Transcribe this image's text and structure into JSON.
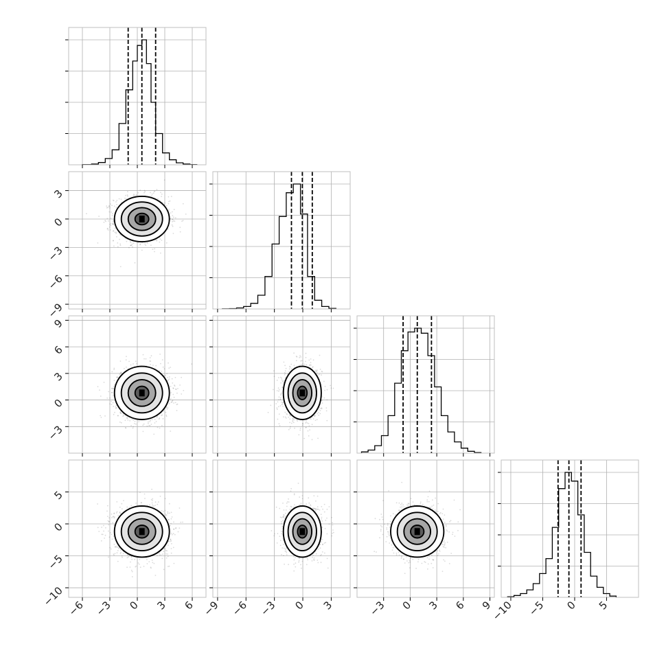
{
  "chart_data": {
    "type": "corner",
    "parameters": [
      {
        "range": [
          -7.5,
          7.5
        ],
        "ticks": [
          -6,
          -3,
          0,
          3,
          6
        ],
        "tick_labels": [
          "−6",
          "−3",
          "0",
          "3",
          "6"
        ]
      },
      {
        "range": [
          -9.5,
          5.0
        ],
        "ticks": [
          -9,
          -6,
          -3,
          0,
          3
        ],
        "tick_labels": [
          "−9",
          "−6",
          "−3",
          "0",
          "3"
        ]
      },
      {
        "range": [
          -6.0,
          9.5
        ],
        "ticks": [
          -3,
          0,
          3,
          6,
          9
        ],
        "tick_labels": [
          "−3",
          "0",
          "3",
          "6",
          "9"
        ]
      },
      {
        "range": [
          -11.5,
          10.0
        ],
        "ticks": [
          -10,
          -5,
          0,
          5
        ],
        "tick_labels": [
          "−10",
          "−5",
          "0",
          "5"
        ]
      }
    ],
    "marginals": [
      {
        "bins": [
          -6.0,
          -5.0,
          -4.25,
          -3.5,
          -2.75,
          -2.0,
          -1.25,
          -0.5,
          0.0,
          0.5,
          1.0,
          1.5,
          2.0,
          2.75,
          3.5,
          4.25,
          5.0,
          5.75,
          6.5
        ],
        "counts": [
          2,
          6,
          18,
          50,
          120,
          330,
          600,
          830,
          955,
          1000,
          810,
          500,
          250,
          95,
          40,
          16,
          6,
          2
        ],
        "quantiles": [
          -1.0,
          0.5,
          2.0
        ]
      },
      {
        "bins": [
          -8.5,
          -7.75,
          -7.0,
          -6.25,
          -5.5,
          -4.75,
          -4.0,
          -3.25,
          -2.5,
          -1.75,
          -1.0,
          -0.25,
          0.5,
          1.25,
          2.0,
          2.75,
          3.5
        ],
        "counts": [
          1,
          3,
          8,
          20,
          45,
          110,
          260,
          520,
          740,
          930,
          1000,
          760,
          260,
          70,
          20,
          5
        ],
        "quantiles": [
          -1.2,
          -0.05,
          1.0
        ]
      },
      {
        "bins": [
          -5.5,
          -4.75,
          -4.0,
          -3.25,
          -2.5,
          -1.75,
          -1.0,
          -0.25,
          0.5,
          1.25,
          2.0,
          2.75,
          3.5,
          4.25,
          5.0,
          5.75,
          6.5,
          7.25,
          8.0
        ],
        "counts": [
          10,
          25,
          60,
          140,
          300,
          560,
          820,
          970,
          1000,
          960,
          780,
          530,
          300,
          170,
          90,
          40,
          15,
          5
        ],
        "quantiles": [
          -0.8,
          0.8,
          2.4
        ]
      },
      {
        "bins": [
          -10.5,
          -9.5,
          -8.5,
          -7.5,
          -6.5,
          -5.5,
          -4.5,
          -3.5,
          -2.5,
          -1.5,
          -0.5,
          0.5,
          1.5,
          2.5,
          3.5,
          4.5,
          5.5,
          6.5
        ],
        "counts": [
          5,
          15,
          30,
          60,
          110,
          190,
          310,
          560,
          870,
          1000,
          930,
          660,
          360,
          170,
          80,
          30,
          10
        ],
        "quantiles": [
          -2.6,
          -0.9,
          1.0
        ]
      }
    ],
    "joint": [
      {
        "x": 0,
        "y": 1,
        "center": [
          0.5,
          0.0
        ],
        "sd": [
          1.5,
          1.2
        ]
      },
      {
        "x": 0,
        "y": 2,
        "center": [
          0.5,
          0.8
        ],
        "sd": [
          1.5,
          1.5
        ]
      },
      {
        "x": 1,
        "y": 2,
        "center": [
          -0.05,
          0.8
        ],
        "sd": [
          1.0,
          1.5
        ]
      },
      {
        "x": 0,
        "y": 3,
        "center": [
          0.5,
          -1.2
        ],
        "sd": [
          1.5,
          2.0
        ]
      },
      {
        "x": 1,
        "y": 3,
        "center": [
          -0.05,
          -1.2
        ],
        "sd": [
          1.0,
          2.0
        ]
      },
      {
        "x": 2,
        "y": 3,
        "center": [
          0.8,
          -1.2
        ],
        "sd": [
          1.5,
          2.0
        ]
      }
    ],
    "contour_sigmas": [
      0.5,
      1.0,
      1.5,
      2.0
    ],
    "grid": true,
    "colors": {
      "line": "#000000",
      "density": "#000000",
      "points": "#555555",
      "grid": "#b0b0b0"
    }
  }
}
